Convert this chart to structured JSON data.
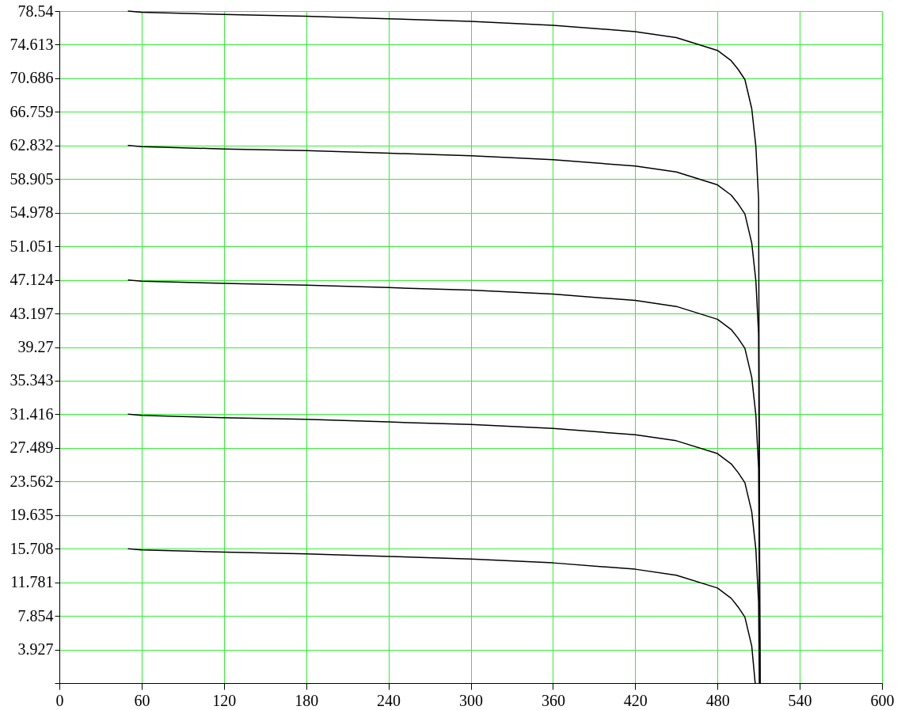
{
  "chart_data": {
    "type": "line",
    "xlim": [
      0,
      600
    ],
    "xticks": [
      0,
      60,
      120,
      180,
      240,
      300,
      360,
      420,
      480,
      540,
      600
    ],
    "ylim": [
      0,
      78.54
    ],
    "yticks": [
      {
        "value": 0,
        "label": null
      },
      3.927,
      7.854,
      11.781,
      15.708,
      19.635,
      23.562,
      27.489,
      31.416,
      35.343,
      39.27,
      43.197,
      47.124,
      51.051,
      54.978,
      58.905,
      62.832,
      66.759,
      70.686,
      74.613,
      78.54
    ],
    "grid": true,
    "line_style": "solid",
    "series": [
      {
        "color": "#000000",
        "x": [
          50,
          60,
          120,
          180,
          240,
          300,
          360,
          420,
          450,
          480,
          490,
          495,
          500,
          505,
          508,
          510,
          511
        ],
        "values": [
          78.54,
          78.4,
          78.14,
          77.94,
          77.64,
          77.34,
          76.88,
          76.14,
          75.44,
          73.94,
          72.74,
          71.74,
          70.54,
          67.14,
          62.74,
          56.54,
          0
        ]
      },
      {
        "color": "#000000",
        "x": [
          50,
          60,
          120,
          180,
          240,
          300,
          360,
          420,
          450,
          480,
          490,
          495,
          500,
          505,
          508,
          510,
          511
        ],
        "values": [
          62.83,
          62.69,
          62.43,
          62.23,
          61.93,
          61.63,
          61.17,
          60.43,
          59.73,
          58.23,
          57.03,
          56.03,
          54.83,
          51.43,
          47.03,
          40.83,
          0
        ]
      },
      {
        "color": "#000000",
        "x": [
          50,
          60,
          120,
          180,
          240,
          300,
          360,
          420,
          450,
          480,
          490,
          495,
          500,
          505,
          508,
          510,
          511
        ],
        "values": [
          47.12,
          46.98,
          46.72,
          46.52,
          46.22,
          45.92,
          45.46,
          44.72,
          44.02,
          42.52,
          41.32,
          40.32,
          39.12,
          35.72,
          31.32,
          25.12,
          0
        ]
      },
      {
        "color": "#000000",
        "x": [
          50,
          60,
          120,
          180,
          240,
          300,
          360,
          420,
          450,
          480,
          490,
          495,
          500,
          505,
          508,
          510,
          510.5
        ],
        "values": [
          31.42,
          31.28,
          31.02,
          30.82,
          30.52,
          30.22,
          29.76,
          29.02,
          28.32,
          26.82,
          25.62,
          24.62,
          23.42,
          20.02,
          15.62,
          9.42,
          0
        ]
      },
      {
        "color": "#000000",
        "x": [
          50,
          60,
          120,
          180,
          240,
          300,
          360,
          420,
          450,
          480,
          490,
          495,
          500,
          505,
          507.5
        ],
        "values": [
          15.71,
          15.57,
          15.31,
          15.11,
          14.81,
          14.51,
          14.05,
          13.31,
          12.61,
          11.11,
          9.91,
          8.91,
          7.71,
          4.31,
          0
        ]
      }
    ]
  }
}
